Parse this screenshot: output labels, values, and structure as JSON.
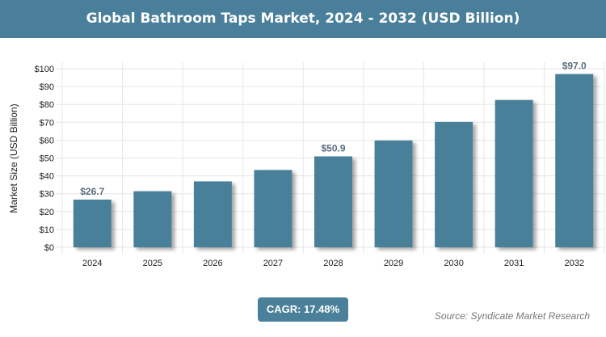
{
  "chart_data": {
    "type": "bar",
    "title": "Global Bathroom Taps Market, 2024 - 2032 (USD Billion)",
    "xlabel": "",
    "ylabel": "Market Size (USD Billion)",
    "categories": [
      "2024",
      "2025",
      "2026",
      "2027",
      "2028",
      "2029",
      "2030",
      "2031",
      "2032"
    ],
    "values": [
      26.7,
      31.4,
      36.9,
      43.3,
      50.9,
      59.8,
      70.2,
      82.5,
      97.0
    ],
    "data_labels": {
      "0": "$26.7",
      "4": "$50.9",
      "8": "$97.0"
    },
    "ylim": [
      0,
      100
    ],
    "yticks": [
      "$0",
      "$10",
      "$20",
      "$30",
      "$40",
      "$50",
      "$60",
      "$70",
      "$80",
      "$90",
      "$100"
    ],
    "grid": true,
    "bar_color": "#4a8099"
  },
  "cagr_label": "CAGR: 17.48%",
  "source": "Source: Syndicate Market Research"
}
